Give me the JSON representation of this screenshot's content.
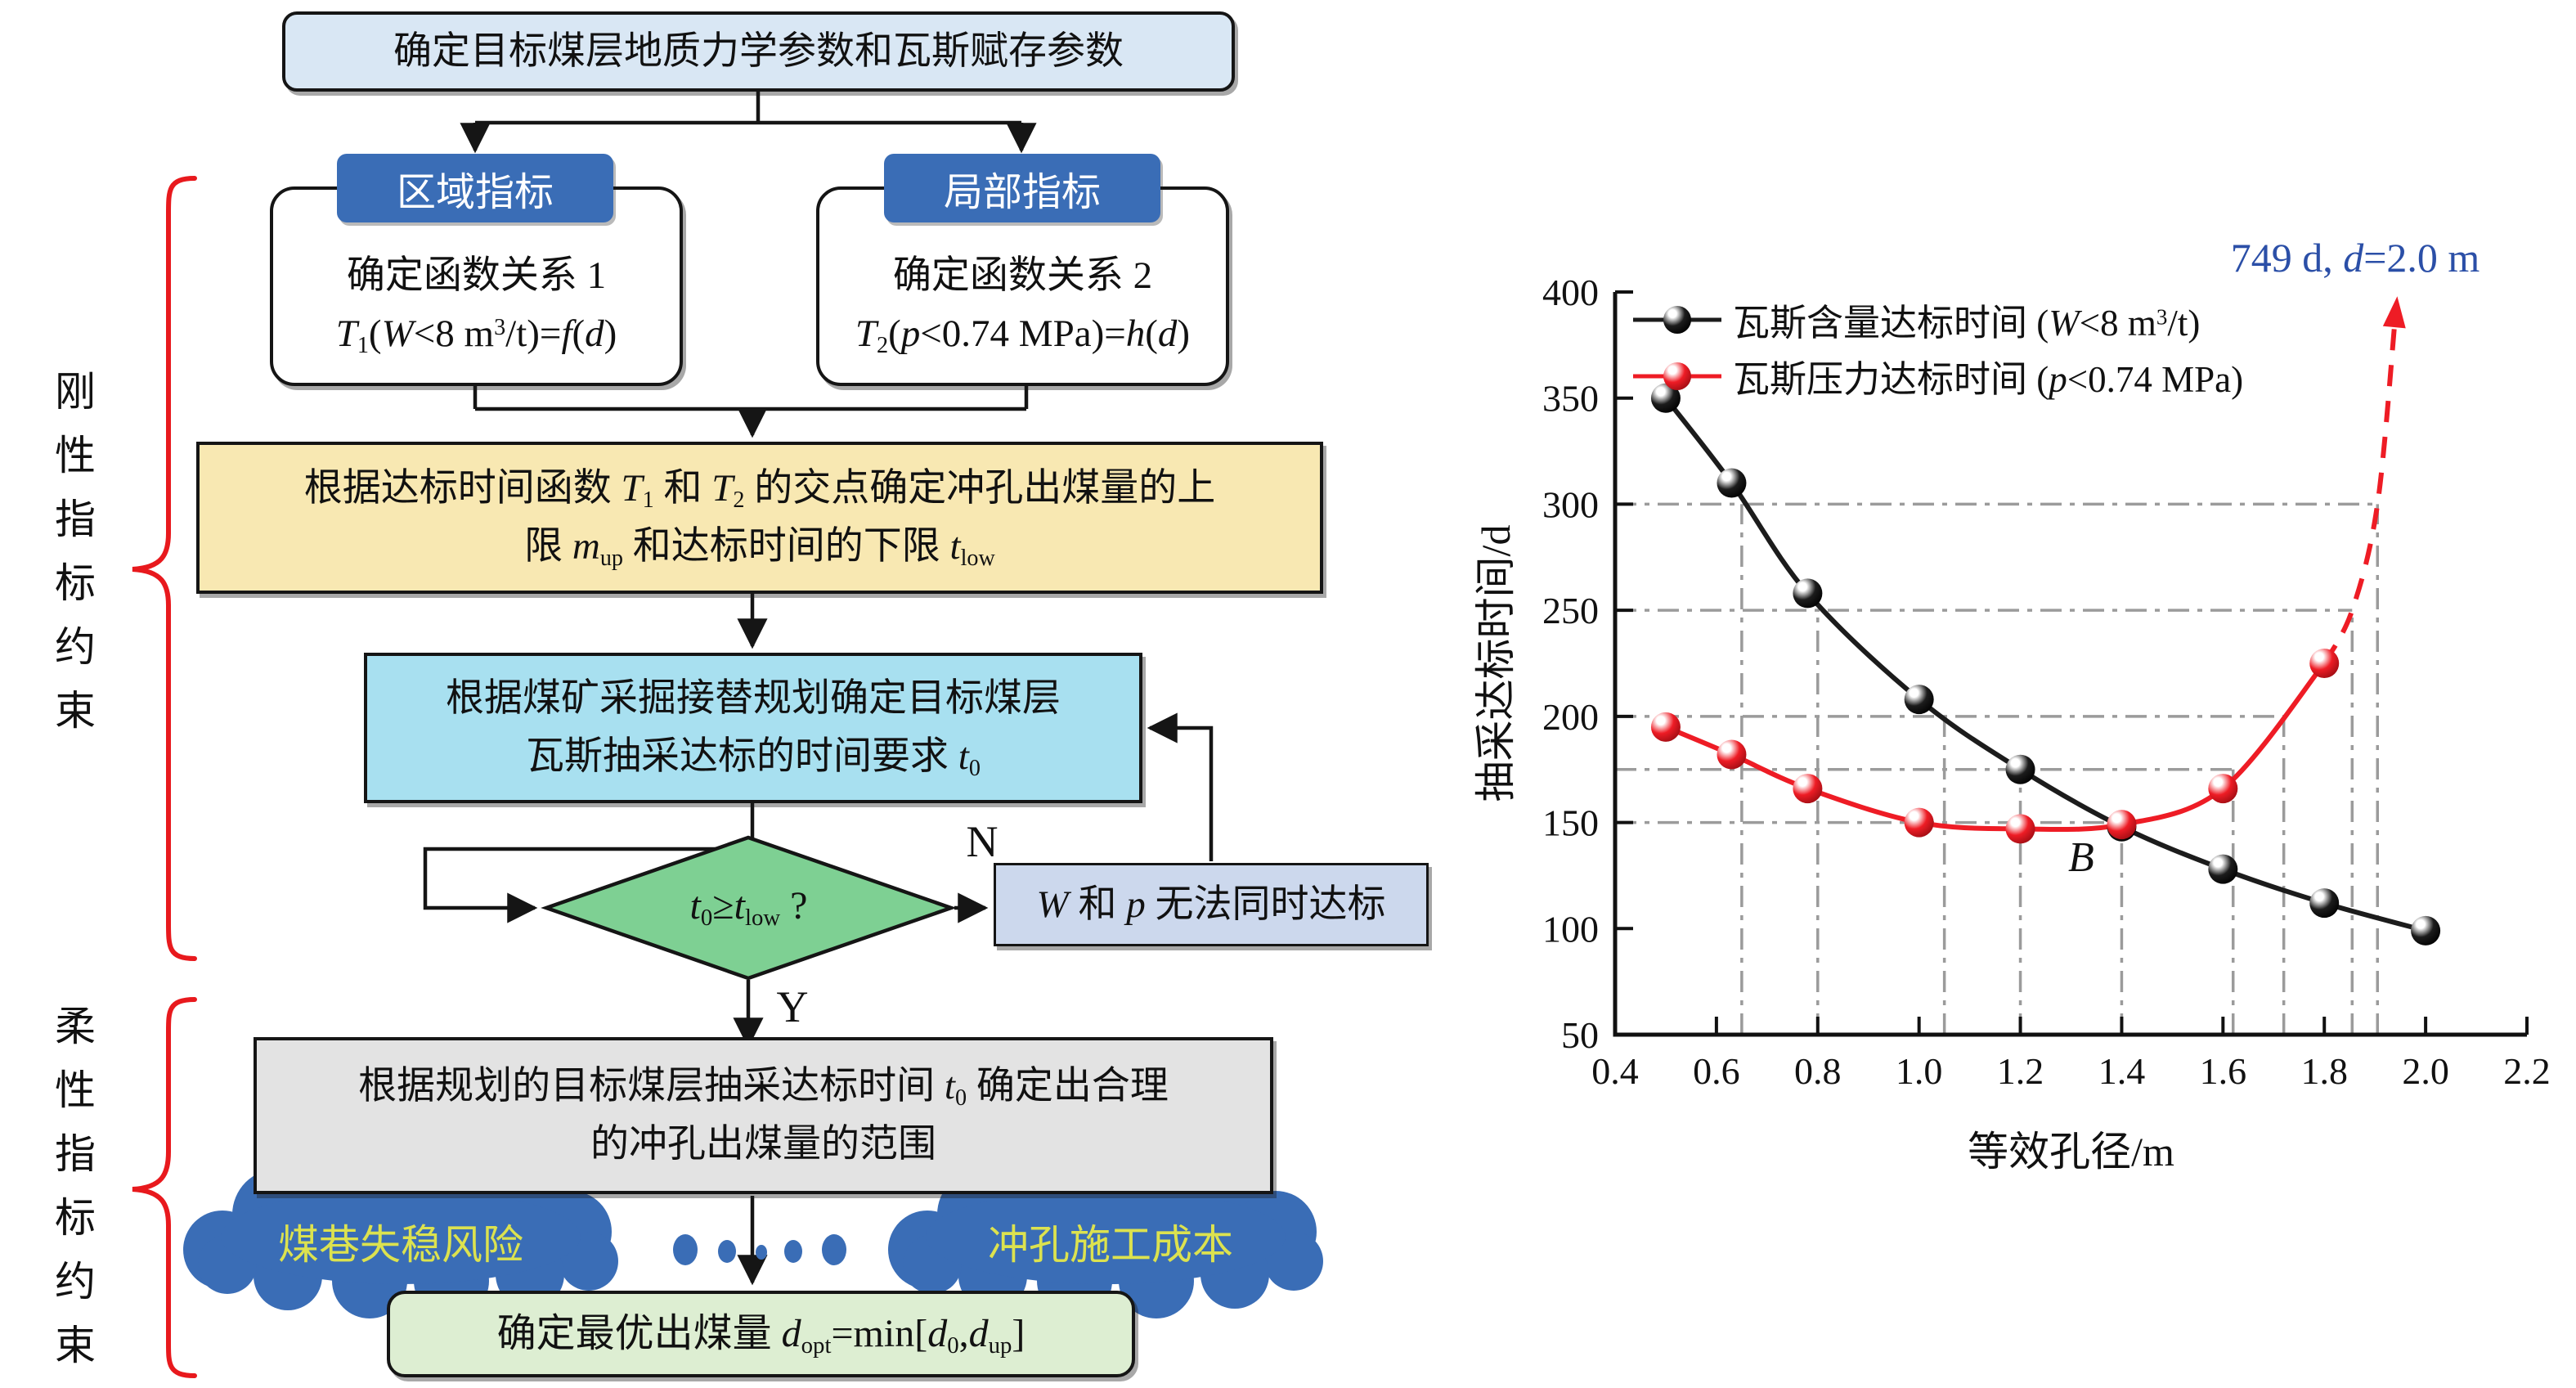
{
  "colors": {
    "header_blue": "#3a6db6",
    "cloud_blue": "#3a6db6",
    "cloud_text_yellow": "#dce24f",
    "top_box_fill": "#d9e7f4",
    "yellow_box_fill": "#f8e8b2",
    "cyan_box_fill": "#a8e0f0",
    "diamond_fill": "#7ed093",
    "fail_box_fill": "#ccd8ed",
    "gray_box_fill": "#e3e3e3",
    "green_box_fill": "#ddeed2",
    "brace_red": "#e8191d",
    "annotation_blue": "#2b4fa7",
    "series_black": "#1c1c1c",
    "series_red": "#ee1c25",
    "guide_gray": "#9b9b9b"
  },
  "flowchart": {
    "top_box": "确定目标煤层地质力学参数和瓦斯赋存参数",
    "branch_headers": {
      "region": "区域指标",
      "local": "局部指标"
    },
    "func1": {
      "line1": "确定函数关系 1",
      "formula": [
        {
          "t": "i",
          "v": "T"
        },
        {
          "t": "sub",
          "v": "1"
        },
        {
          "t": "n",
          "v": "("
        },
        {
          "t": "i",
          "v": "W"
        },
        {
          "t": "n",
          "v": "<8 m"
        },
        {
          "t": "sup",
          "v": "3"
        },
        {
          "t": "n",
          "v": "/t)="
        },
        {
          "t": "i",
          "v": "f"
        },
        {
          "t": "n",
          "v": "("
        },
        {
          "t": "i",
          "v": "d"
        },
        {
          "t": "n",
          "v": ")"
        }
      ]
    },
    "func2": {
      "line1": "确定函数关系 2",
      "formula": [
        {
          "t": "i",
          "v": "T"
        },
        {
          "t": "sub",
          "v": "2"
        },
        {
          "t": "n",
          "v": "("
        },
        {
          "t": "i",
          "v": "p"
        },
        {
          "t": "n",
          "v": "<0.74 MPa)="
        },
        {
          "t": "i",
          "v": "h"
        },
        {
          "t": "n",
          "v": "("
        },
        {
          "t": "i",
          "v": "d"
        },
        {
          "t": "n",
          "v": ")"
        }
      ]
    },
    "upper_limit_box": {
      "line1": [
        {
          "t": "n",
          "v": "根据达标时间函数 "
        },
        {
          "t": "i",
          "v": "T"
        },
        {
          "t": "sub",
          "v": "1"
        },
        {
          "t": "n",
          "v": " 和 "
        },
        {
          "t": "i",
          "v": "T"
        },
        {
          "t": "sub",
          "v": "2"
        },
        {
          "t": "n",
          "v": " 的交点确定冲孔出煤量的上"
        }
      ],
      "line2": [
        {
          "t": "n",
          "v": "限 "
        },
        {
          "t": "i",
          "v": "m"
        },
        {
          "t": "sub",
          "v": "up"
        },
        {
          "t": "n",
          "v": " 和达标时间的下限 "
        },
        {
          "t": "i",
          "v": "t"
        },
        {
          "t": "sub",
          "v": "low"
        }
      ]
    },
    "schedule_box": {
      "line1": "根据煤矿采掘接替规划确定目标煤层",
      "line2": [
        {
          "t": "n",
          "v": "瓦斯抽采达标的时间要求 "
        },
        {
          "t": "i",
          "v": "t"
        },
        {
          "t": "sub",
          "v": "0"
        }
      ]
    },
    "decision": {
      "tokens": [
        {
          "t": "i",
          "v": "t"
        },
        {
          "t": "sub",
          "v": "0"
        },
        {
          "t": "n",
          "v": "≥"
        },
        {
          "t": "i",
          "v": "t"
        },
        {
          "t": "sub",
          "v": "low"
        },
        {
          "t": "n",
          "v": " ?"
        }
      ],
      "yes": "Y",
      "no": "N"
    },
    "fail_box": [
      {
        "t": "i",
        "v": "W"
      },
      {
        "t": "n",
        "v": " 和 "
      },
      {
        "t": "i",
        "v": "p"
      },
      {
        "t": "n",
        "v": " 无法同时达标"
      }
    ],
    "range_box": {
      "line1": [
        {
          "t": "n",
          "v": "根据规划的目标煤层抽采达标时间 "
        },
        {
          "t": "i",
          "v": "t"
        },
        {
          "t": "sub",
          "v": "0"
        },
        {
          "t": "n",
          "v": " 确定出合理"
        }
      ],
      "line2": "的冲孔出煤量的范围"
    },
    "cloud_left": "煤巷失稳风险",
    "cloud_right": "冲孔施工成本",
    "optimal_box": [
      {
        "t": "n",
        "v": "确定最优出煤量 "
      },
      {
        "t": "i",
        "v": "d"
      },
      {
        "t": "sub",
        "v": "opt"
      },
      {
        "t": "n",
        "v": "=min["
      },
      {
        "t": "i",
        "v": "d"
      },
      {
        "t": "sub",
        "v": "0"
      },
      {
        "t": "n",
        "v": ","
      },
      {
        "t": "i",
        "v": "d"
      },
      {
        "t": "sub",
        "v": "up"
      },
      {
        "t": "n",
        "v": "]"
      }
    ],
    "side_labels": {
      "rigid": "刚性指标约束",
      "flexible": "柔性指标约束"
    }
  },
  "chart": {
    "legend": [
      {
        "tokens": [
          {
            "t": "n",
            "v": "瓦斯含量达标时间 ("
          },
          {
            "t": "i",
            "v": "W"
          },
          {
            "t": "n",
            "v": "<8 m"
          },
          {
            "t": "sup",
            "v": "3"
          },
          {
            "t": "n",
            "v": "/t)"
          }
        ]
      },
      {
        "tokens": [
          {
            "t": "n",
            "v": "瓦斯压力达标时间 ("
          },
          {
            "t": "i",
            "v": "p"
          },
          {
            "t": "n",
            "v": "<0.74 MPa)"
          }
        ]
      }
    ],
    "annotation_tokens": [
      {
        "t": "n",
        "v": "749 d,  "
      },
      {
        "t": "i",
        "v": "d"
      },
      {
        "t": "n",
        "v": "=2.0 m"
      }
    ]
  },
  "chart_data": {
    "type": "line",
    "title": "",
    "xlabel": "等效孔径/m",
    "ylabel": "抽采达标时间/d",
    "xlim": [
      0.4,
      2.2
    ],
    "ylim": [
      50,
      400
    ],
    "xticks": [
      0.4,
      0.6,
      0.8,
      1.0,
      1.2,
      1.4,
      1.6,
      1.8,
      2.0,
      2.2
    ],
    "yticks": [
      50,
      100,
      150,
      200,
      250,
      300,
      350,
      400
    ],
    "grid": "dash-dot crosshair reference guides",
    "legend_position": "top-left",
    "series": [
      {
        "name": "瓦斯含量达标时间 (W<8 m³/t)",
        "color": "#1c1c1c",
        "dark": "#000000",
        "x": [
          0.5,
          0.63,
          0.78,
          1.0,
          1.2,
          1.4,
          1.6,
          1.8,
          2.0
        ],
        "y": [
          350,
          310,
          258,
          208,
          175,
          148,
          128,
          112,
          99
        ]
      },
      {
        "name": "瓦斯压力达标时间 (p<0.74 MPa)",
        "color": "#ee1c25",
        "dark": "#9e0d13",
        "x": [
          0.5,
          0.63,
          0.78,
          1.0,
          1.2,
          1.4,
          1.6,
          1.8
        ],
        "y": [
          195,
          182,
          166,
          150,
          147,
          149,
          166,
          225
        ]
      }
    ],
    "dashed_extension": {
      "series": 1,
      "points": [
        [
          1.8,
          225
        ],
        [
          1.855,
          250
        ],
        [
          1.905,
          300
        ],
        [
          1.94,
          388
        ]
      ],
      "annotation": "749 d, d=2.0 m"
    },
    "point_label": {
      "text": "B",
      "x": 1.32,
      "y": 127,
      "color": "#2b4fa7"
    },
    "h_guides": [
      {
        "y": 300,
        "x_end": 1.905
      },
      {
        "y": 250,
        "x_end": 1.855
      },
      {
        "y": 200,
        "x_end": 1.72
      },
      {
        "y": 175,
        "x_end": 1.62
      },
      {
        "y": 150,
        "x_end": 1.4
      }
    ],
    "v_guides": [
      {
        "x": 0.65,
        "y_top": 300
      },
      {
        "x": 0.8,
        "y_top": 250
      },
      {
        "x": 1.05,
        "y_top": 200
      },
      {
        "x": 1.2,
        "y_top": 175
      },
      {
        "x": 1.4,
        "y_top": 150
      },
      {
        "x": 1.62,
        "y_top": 175
      },
      {
        "x": 1.72,
        "y_top": 200
      },
      {
        "x": 1.855,
        "y_top": 250
      },
      {
        "x": 1.905,
        "y_top": 300
      }
    ]
  }
}
